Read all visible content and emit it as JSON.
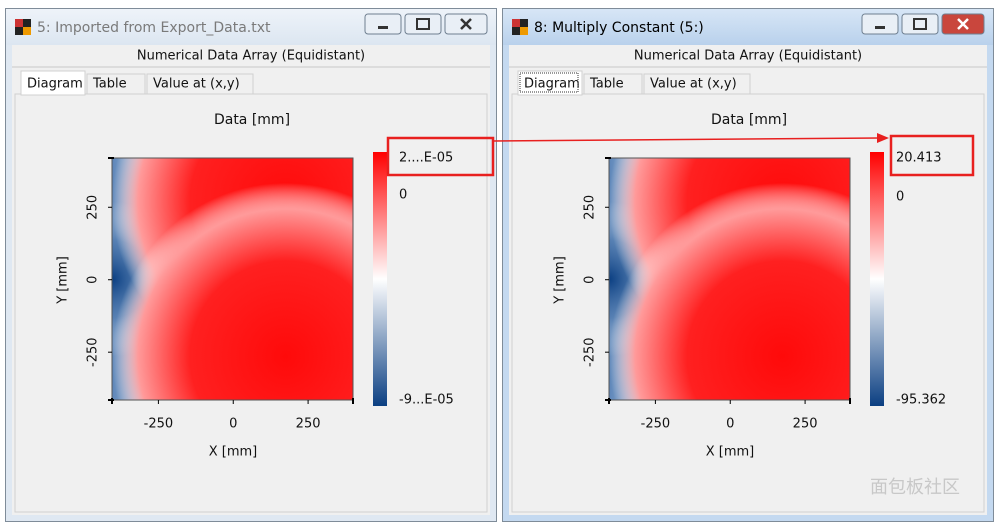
{
  "windows": [
    {
      "title": "5: Imported from Export_Data.txt",
      "header": "Numerical Data Array (Equidistant)",
      "tabs": [
        "Diagram",
        "Table",
        "Value at (x,y)"
      ],
      "plot": {
        "title": "Data  [mm]",
        "x_label": "X [mm]",
        "y_label": "Y [mm]",
        "xlim": [
          -405,
          400
        ],
        "xticks": [
          -250,
          0,
          250
        ],
        "ylim": [
          -415,
          420
        ],
        "yticks": [
          250,
          0,
          -250
        ],
        "colorbar_ticks": [
          "2....E-05",
          "0",
          "-9...E-05"
        ]
      }
    },
    {
      "title": "8: Multiply Constant (5:)",
      "header": "Numerical Data Array (Equidistant)",
      "tabs": [
        "Diagram",
        "Table",
        "Value at (x,y)"
      ],
      "plot": {
        "title": "Data  [mm]",
        "x_label": "X [mm]",
        "y_label": "Y [mm]",
        "xlim": [
          -405,
          400
        ],
        "xticks": [
          -250,
          0,
          250
        ],
        "ylim": [
          -415,
          420
        ],
        "yticks": [
          250,
          0,
          -250
        ],
        "colorbar_lim": [
          -95.362,
          20.413
        ],
        "colorbar_ticks": [
          20.413,
          0,
          -95.362
        ]
      }
    }
  ],
  "watermark": "面包板社区"
}
